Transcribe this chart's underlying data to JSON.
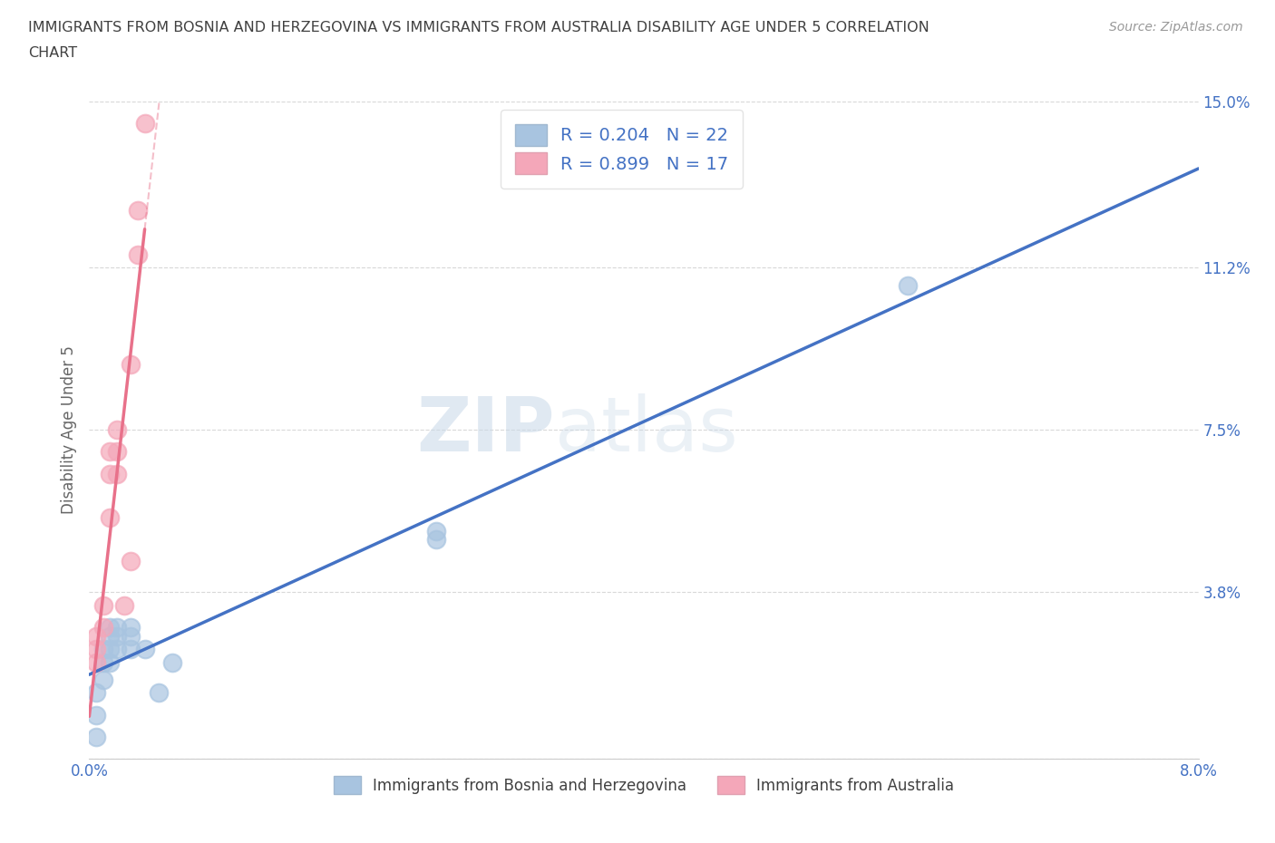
{
  "title_line1": "IMMIGRANTS FROM BOSNIA AND HERZEGOVINA VS IMMIGRANTS FROM AUSTRALIA DISABILITY AGE UNDER 5 CORRELATION",
  "title_line2": "CHART",
  "source": "Source: ZipAtlas.com",
  "ylabel": "Disability Age Under 5",
  "xlim": [
    0.0,
    0.08
  ],
  "ylim": [
    0.0,
    0.15
  ],
  "xtick_vals": [
    0.0,
    0.02,
    0.04,
    0.06,
    0.08
  ],
  "xtick_labels": [
    "0.0%",
    "",
    "",
    "",
    "8.0%"
  ],
  "ytick_vals": [
    0.0,
    0.038,
    0.075,
    0.112,
    0.15
  ],
  "ytick_labels": [
    "",
    "3.8%",
    "7.5%",
    "11.2%",
    "15.0%"
  ],
  "bosnia_x": [
    0.0005,
    0.0005,
    0.0005,
    0.001,
    0.001,
    0.001,
    0.0015,
    0.0015,
    0.0015,
    0.0015,
    0.002,
    0.002,
    0.002,
    0.003,
    0.003,
    0.003,
    0.004,
    0.005,
    0.006,
    0.025,
    0.025,
    0.059
  ],
  "bosnia_y": [
    0.005,
    0.01,
    0.015,
    0.018,
    0.022,
    0.025,
    0.022,
    0.025,
    0.028,
    0.03,
    0.028,
    0.03,
    0.025,
    0.025,
    0.028,
    0.03,
    0.025,
    0.015,
    0.022,
    0.052,
    0.05,
    0.108
  ],
  "australia_x": [
    0.0005,
    0.0005,
    0.0005,
    0.001,
    0.001,
    0.0015,
    0.0015,
    0.0015,
    0.002,
    0.002,
    0.002,
    0.0025,
    0.003,
    0.003,
    0.0035,
    0.0035,
    0.004
  ],
  "australia_y": [
    0.022,
    0.025,
    0.028,
    0.03,
    0.035,
    0.055,
    0.065,
    0.07,
    0.065,
    0.07,
    0.075,
    0.035,
    0.09,
    0.045,
    0.115,
    0.125,
    0.145
  ],
  "bosnia_color": "#a8c4e0",
  "australia_color": "#f4a7b9",
  "bosnia_line_color": "#4472c4",
  "australia_line_color": "#e8718a",
  "R_bosnia": 0.204,
  "N_bosnia": 22,
  "R_australia": 0.899,
  "N_australia": 17,
  "watermark_zip": "ZIP",
  "watermark_atlas": "atlas",
  "grid_color": "#d8d8d8",
  "bg_color": "#ffffff",
  "title_color": "#404040",
  "axis_tick_color": "#4472c4"
}
